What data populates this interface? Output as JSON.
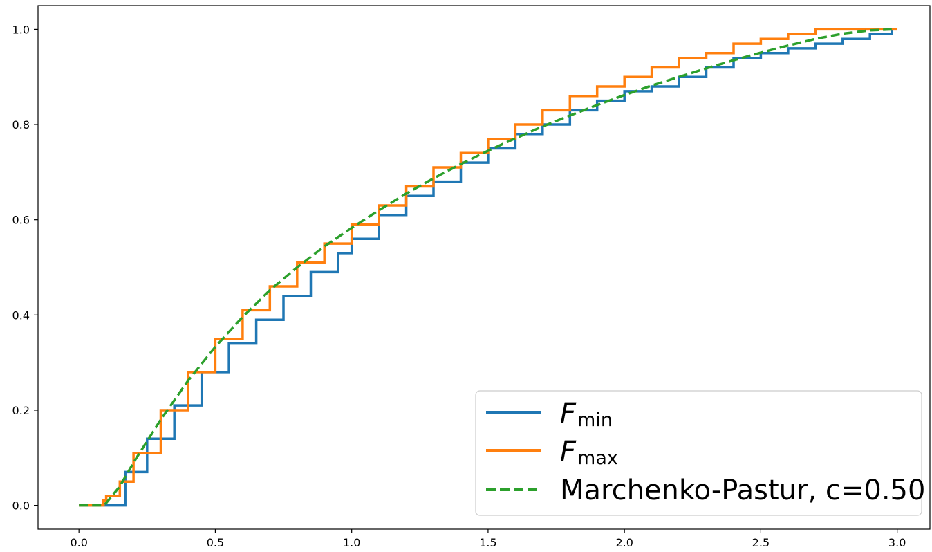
{
  "chart_data": {
    "type": "line",
    "title": "",
    "xlabel": "",
    "ylabel": "",
    "xlim": [
      -0.15,
      3.12
    ],
    "ylim": [
      -0.05,
      1.05
    ],
    "grid": false,
    "legend_position": "lower-right",
    "x_ticks": [
      "0.0",
      "0.5",
      "1.0",
      "1.5",
      "2.0",
      "2.5",
      "3.0"
    ],
    "y_ticks": [
      "0.0",
      "0.2",
      "0.4",
      "0.6",
      "0.8",
      "1.0"
    ],
    "series": [
      {
        "name_base": "F",
        "name_sub": "min",
        "color": "#1f77b4",
        "style": "solid-step",
        "x": [
          0.0,
          0.11,
          0.17,
          0.25,
          0.35,
          0.45,
          0.55,
          0.65,
          0.75,
          0.85,
          0.95,
          1.0,
          1.1,
          1.2,
          1.3,
          1.4,
          1.5,
          1.6,
          1.7,
          1.8,
          1.9,
          2.0,
          2.1,
          2.2,
          2.3,
          2.4,
          2.5,
          2.6,
          2.7,
          2.8,
          2.9,
          2.95,
          2.98
        ],
        "y": [
          0.0,
          0.0,
          0.07,
          0.14,
          0.21,
          0.28,
          0.34,
          0.39,
          0.44,
          0.49,
          0.53,
          0.56,
          0.61,
          0.65,
          0.68,
          0.72,
          0.75,
          0.78,
          0.8,
          0.83,
          0.85,
          0.87,
          0.88,
          0.9,
          0.92,
          0.94,
          0.95,
          0.96,
          0.97,
          0.98,
          0.99,
          0.99,
          1.0
        ]
      },
      {
        "name_base": "F",
        "name_sub": "max",
        "color": "#ff7f0e",
        "style": "solid-step",
        "x": [
          0.0,
          0.07,
          0.09,
          0.1,
          0.15,
          0.2,
          0.3,
          0.4,
          0.5,
          0.6,
          0.7,
          0.8,
          0.9,
          1.0,
          1.1,
          1.2,
          1.3,
          1.4,
          1.5,
          1.6,
          1.7,
          1.8,
          1.9,
          2.0,
          2.1,
          2.2,
          2.3,
          2.4,
          2.5,
          2.6,
          2.7,
          2.8,
          2.9,
          3.0
        ],
        "y": [
          0.0,
          0.0,
          0.01,
          0.02,
          0.05,
          0.11,
          0.2,
          0.28,
          0.35,
          0.41,
          0.46,
          0.51,
          0.55,
          0.59,
          0.63,
          0.67,
          0.71,
          0.74,
          0.77,
          0.8,
          0.83,
          0.86,
          0.88,
          0.9,
          0.92,
          0.94,
          0.95,
          0.97,
          0.98,
          0.99,
          1.0,
          1.0,
          1.0,
          1.0
        ]
      },
      {
        "name": "Marchenko-Pastur, c=0.50",
        "color": "#2ca02c",
        "style": "dashed",
        "x": [
          0.0,
          0.09,
          0.1,
          0.15,
          0.2,
          0.3,
          0.4,
          0.5,
          0.6,
          0.7,
          0.8,
          0.9,
          1.0,
          1.1,
          1.2,
          1.3,
          1.4,
          1.5,
          1.6,
          1.7,
          1.8,
          1.9,
          2.0,
          2.1,
          2.2,
          2.3,
          2.4,
          2.5,
          2.6,
          2.7,
          2.8,
          2.9,
          2.98
        ],
        "y": [
          0.0,
          0.0,
          0.005,
          0.04,
          0.09,
          0.18,
          0.262,
          0.333,
          0.396,
          0.452,
          0.5,
          0.544,
          0.583,
          0.62,
          0.655,
          0.687,
          0.717,
          0.745,
          0.771,
          0.796,
          0.819,
          0.841,
          0.862,
          0.882,
          0.9,
          0.918,
          0.935,
          0.951,
          0.966,
          0.98,
          0.991,
          0.998,
          1.0
        ]
      }
    ]
  }
}
